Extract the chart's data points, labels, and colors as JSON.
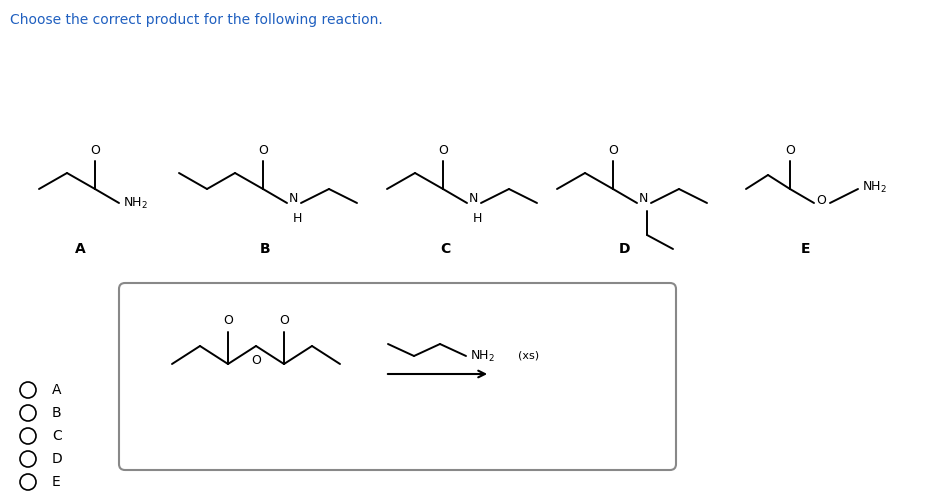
{
  "title": "Choose the correct product for the following reaction.",
  "title_color": "#2060c0",
  "title_fontsize": 10,
  "bg_color": "#ffffff",
  "line_color": "#000000",
  "radio_labels": [
    "A",
    "B",
    "C",
    "D",
    "E"
  ]
}
